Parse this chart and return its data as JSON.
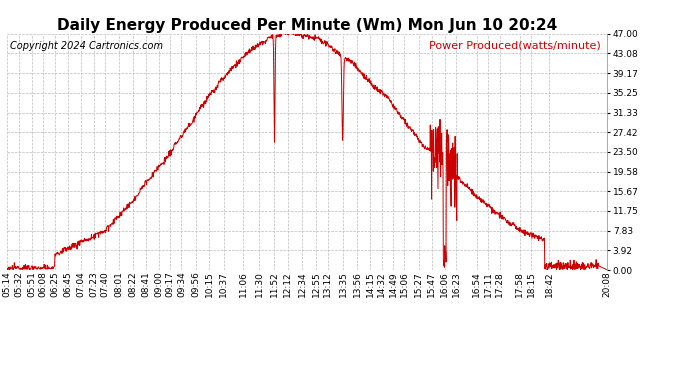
{
  "title": "Daily Energy Produced Per Minute (Wm) Mon Jun 10 20:24",
  "copyright": "Copyright 2024 Cartronics.com",
  "legend_label": "Power Produced(watts/minute)",
  "line_color": "#cc0000",
  "background_color": "#ffffff",
  "grid_color": "#bbbbbb",
  "title_color": "#000000",
  "copyright_color": "#000000",
  "legend_color": "#cc0000",
  "ylabel_right": [
    "47.00",
    "43.08",
    "39.17",
    "35.25",
    "31.33",
    "27.42",
    "23.50",
    "19.58",
    "15.67",
    "11.75",
    "7.83",
    "3.92",
    "0.00"
  ],
  "ymax": 47.0,
  "ymin": 0.0,
  "xtick_labels": [
    "05:14",
    "05:32",
    "05:51",
    "06:08",
    "06:25",
    "06:45",
    "07:04",
    "07:23",
    "07:40",
    "08:01",
    "08:22",
    "08:41",
    "09:00",
    "09:17",
    "09:34",
    "09:56",
    "10:15",
    "10:37",
    "11:06",
    "11:30",
    "11:52",
    "12:12",
    "12:34",
    "12:55",
    "13:12",
    "13:35",
    "13:56",
    "14:15",
    "14:32",
    "14:49",
    "15:06",
    "15:27",
    "15:47",
    "16:06",
    "16:23",
    "16:54",
    "17:11",
    "17:28",
    "17:58",
    "18:15",
    "18:42",
    "20:08"
  ],
  "title_fontsize": 11,
  "copyright_fontsize": 7,
  "legend_fontsize": 8,
  "tick_fontsize": 6.5
}
